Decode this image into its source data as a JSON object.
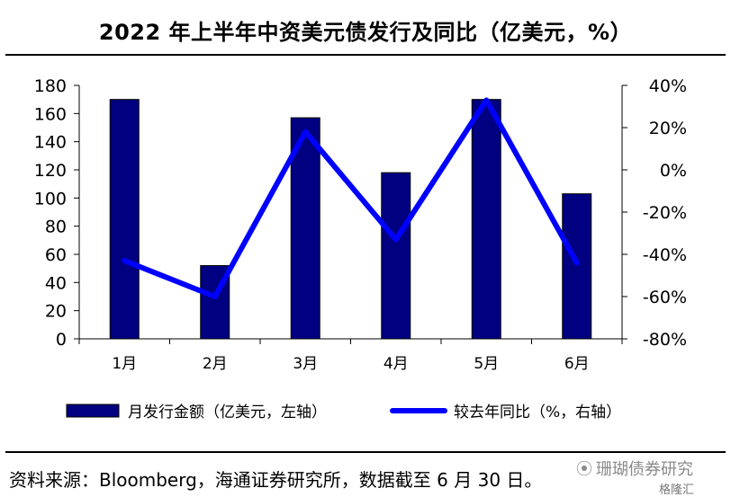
{
  "title": "2022 年上半年中资美元债发行及同比（亿美元，%）",
  "source": "资料来源：Bloomberg，海通证券研究所，数据截至 6 月 30 日。",
  "watermark": "珊瑚债券研究",
  "watermark_badge": "格隆汇",
  "colors": {
    "bar": "#000080",
    "line": "#0000FF",
    "axis": "#000000"
  },
  "chart_data": {
    "type": "bar",
    "categories": [
      "1月",
      "2月",
      "3月",
      "4月",
      "5月",
      "6月"
    ],
    "series": [
      {
        "name": "月发行金额（亿美元，左轴）",
        "type": "bar",
        "axis": "left",
        "values": [
          170,
          52,
          157,
          118,
          170,
          103
        ]
      },
      {
        "name": "较去年同比（%，右轴）",
        "type": "line",
        "axis": "right",
        "values": [
          -43,
          -60,
          18,
          -33,
          33,
          -44
        ]
      }
    ],
    "y_left": {
      "min": 0,
      "max": 180,
      "step": 20,
      "ticks": [
        "0",
        "20",
        "40",
        "60",
        "80",
        "100",
        "120",
        "140",
        "160",
        "180"
      ]
    },
    "y_right": {
      "min": -80,
      "max": 40,
      "step": 20,
      "ticks": [
        "-80%",
        "-60%",
        "-40%",
        "-20%",
        "0%",
        "20%",
        "40%"
      ]
    },
    "legend_position": "bottom",
    "grid": false
  }
}
